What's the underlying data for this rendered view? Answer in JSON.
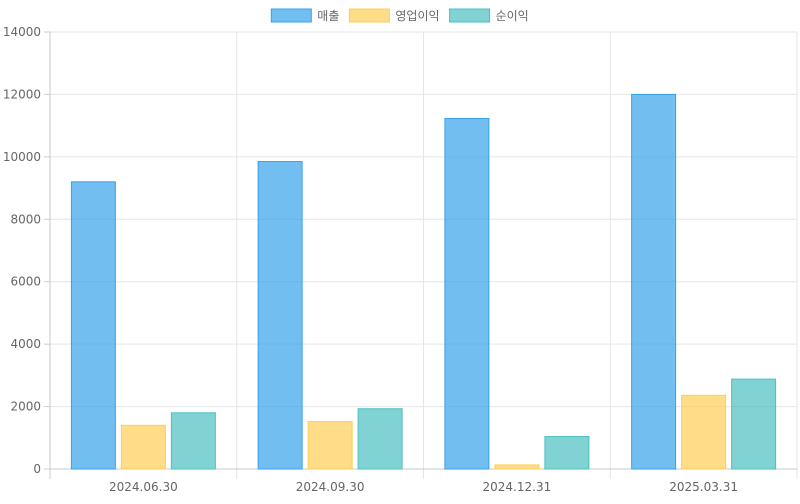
{
  "chart_data": {
    "type": "bar",
    "categories": [
      "2024.06.30",
      "2024.09.30",
      "2024.12.31",
      "2025.03.31"
    ],
    "series": [
      {
        "name": "매출",
        "values": [
          9200,
          9850,
          11230,
          12000
        ],
        "color": "#36a2eb"
      },
      {
        "name": "영업이익",
        "values": [
          1400,
          1520,
          130,
          2360
        ],
        "color": "#ffcd56"
      },
      {
        "name": "순이익",
        "values": [
          1800,
          1930,
          1040,
          2880
        ],
        "color": "#4bc0c0"
      }
    ],
    "ylim": [
      0,
      14000
    ],
    "yticks": [
      "0",
      "2000",
      "4000",
      "6000",
      "8000",
      "10000",
      "12000",
      "14000"
    ],
    "grid": true,
    "legend_position": "top-center"
  }
}
